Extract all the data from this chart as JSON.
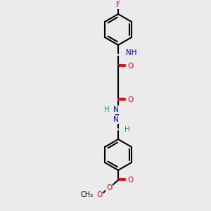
{
  "bg_color": "#ebebeb",
  "bond_color": "#000000",
  "atom_colors": {
    "O": "#ff0000",
    "N": "#0000cd",
    "F": "#cc00cc",
    "C": "#000000",
    "H": "#2e8b8b"
  },
  "ring_r": 22,
  "lw": 1.5,
  "fs": 7.5
}
